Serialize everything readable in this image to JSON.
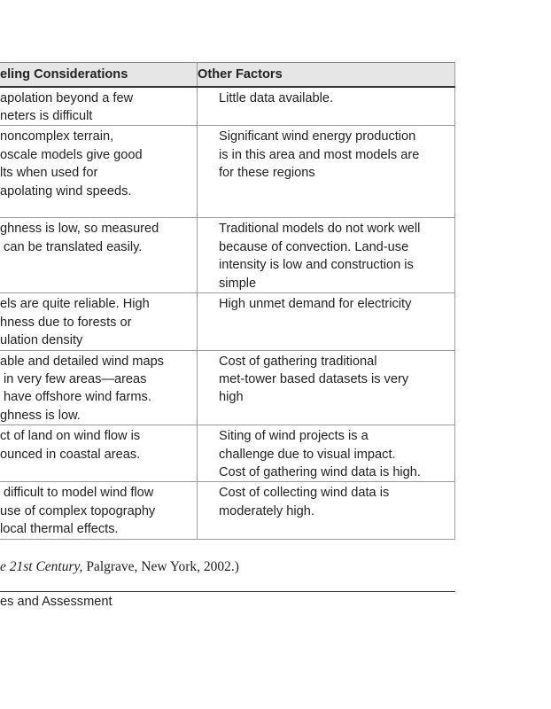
{
  "table": {
    "header": [
      "eling Considerations",
      "Other Factors"
    ],
    "rows": [
      [
        [
          "apolation beyond a few",
          "neters is difficult"
        ],
        [
          "Little data available."
        ]
      ],
      [
        [
          "noncomplex terrain,",
          "oscale models give good",
          "lts when used for",
          "apolating wind speeds."
        ],
        [
          "Significant wind energy production",
          "is in this area and most models are",
          "for these regions"
        ]
      ],
      [
        [
          "ghness is low, so measured",
          " can be translated easily."
        ],
        [
          "Traditional models do not work well",
          "because of convection. Land-use",
          "intensity is low and construction is",
          "simple"
        ]
      ],
      [
        [
          "els are quite reliable. High",
          "hness due to forests or",
          "ulation density"
        ],
        [
          "High unmet demand for electricity"
        ]
      ],
      [
        [
          "able and detailed wind maps",
          " in very few areas—areas",
          " have offshore wind farms.",
          "ghness is low."
        ],
        [
          "Cost of gathering traditional",
          "met-tower based datasets is very",
          "high"
        ]
      ],
      [
        [
          "ct of land on wind flow is",
          "ounced in coastal areas."
        ],
        [
          "Siting of wind projects is a",
          "challenge due to visual impact.",
          "Cost of gathering wind data is high."
        ]
      ],
      [
        [
          " difficult to model wind flow",
          "use of complex topography",
          "local thermal effects."
        ],
        [
          "Cost of collecting wind data is",
          "moderately high."
        ]
      ]
    ]
  },
  "caption": {
    "italic": "e 21st Century,",
    "rest": " Palgrave, New York, 2002.)"
  },
  "footer": "es and Assessment"
}
